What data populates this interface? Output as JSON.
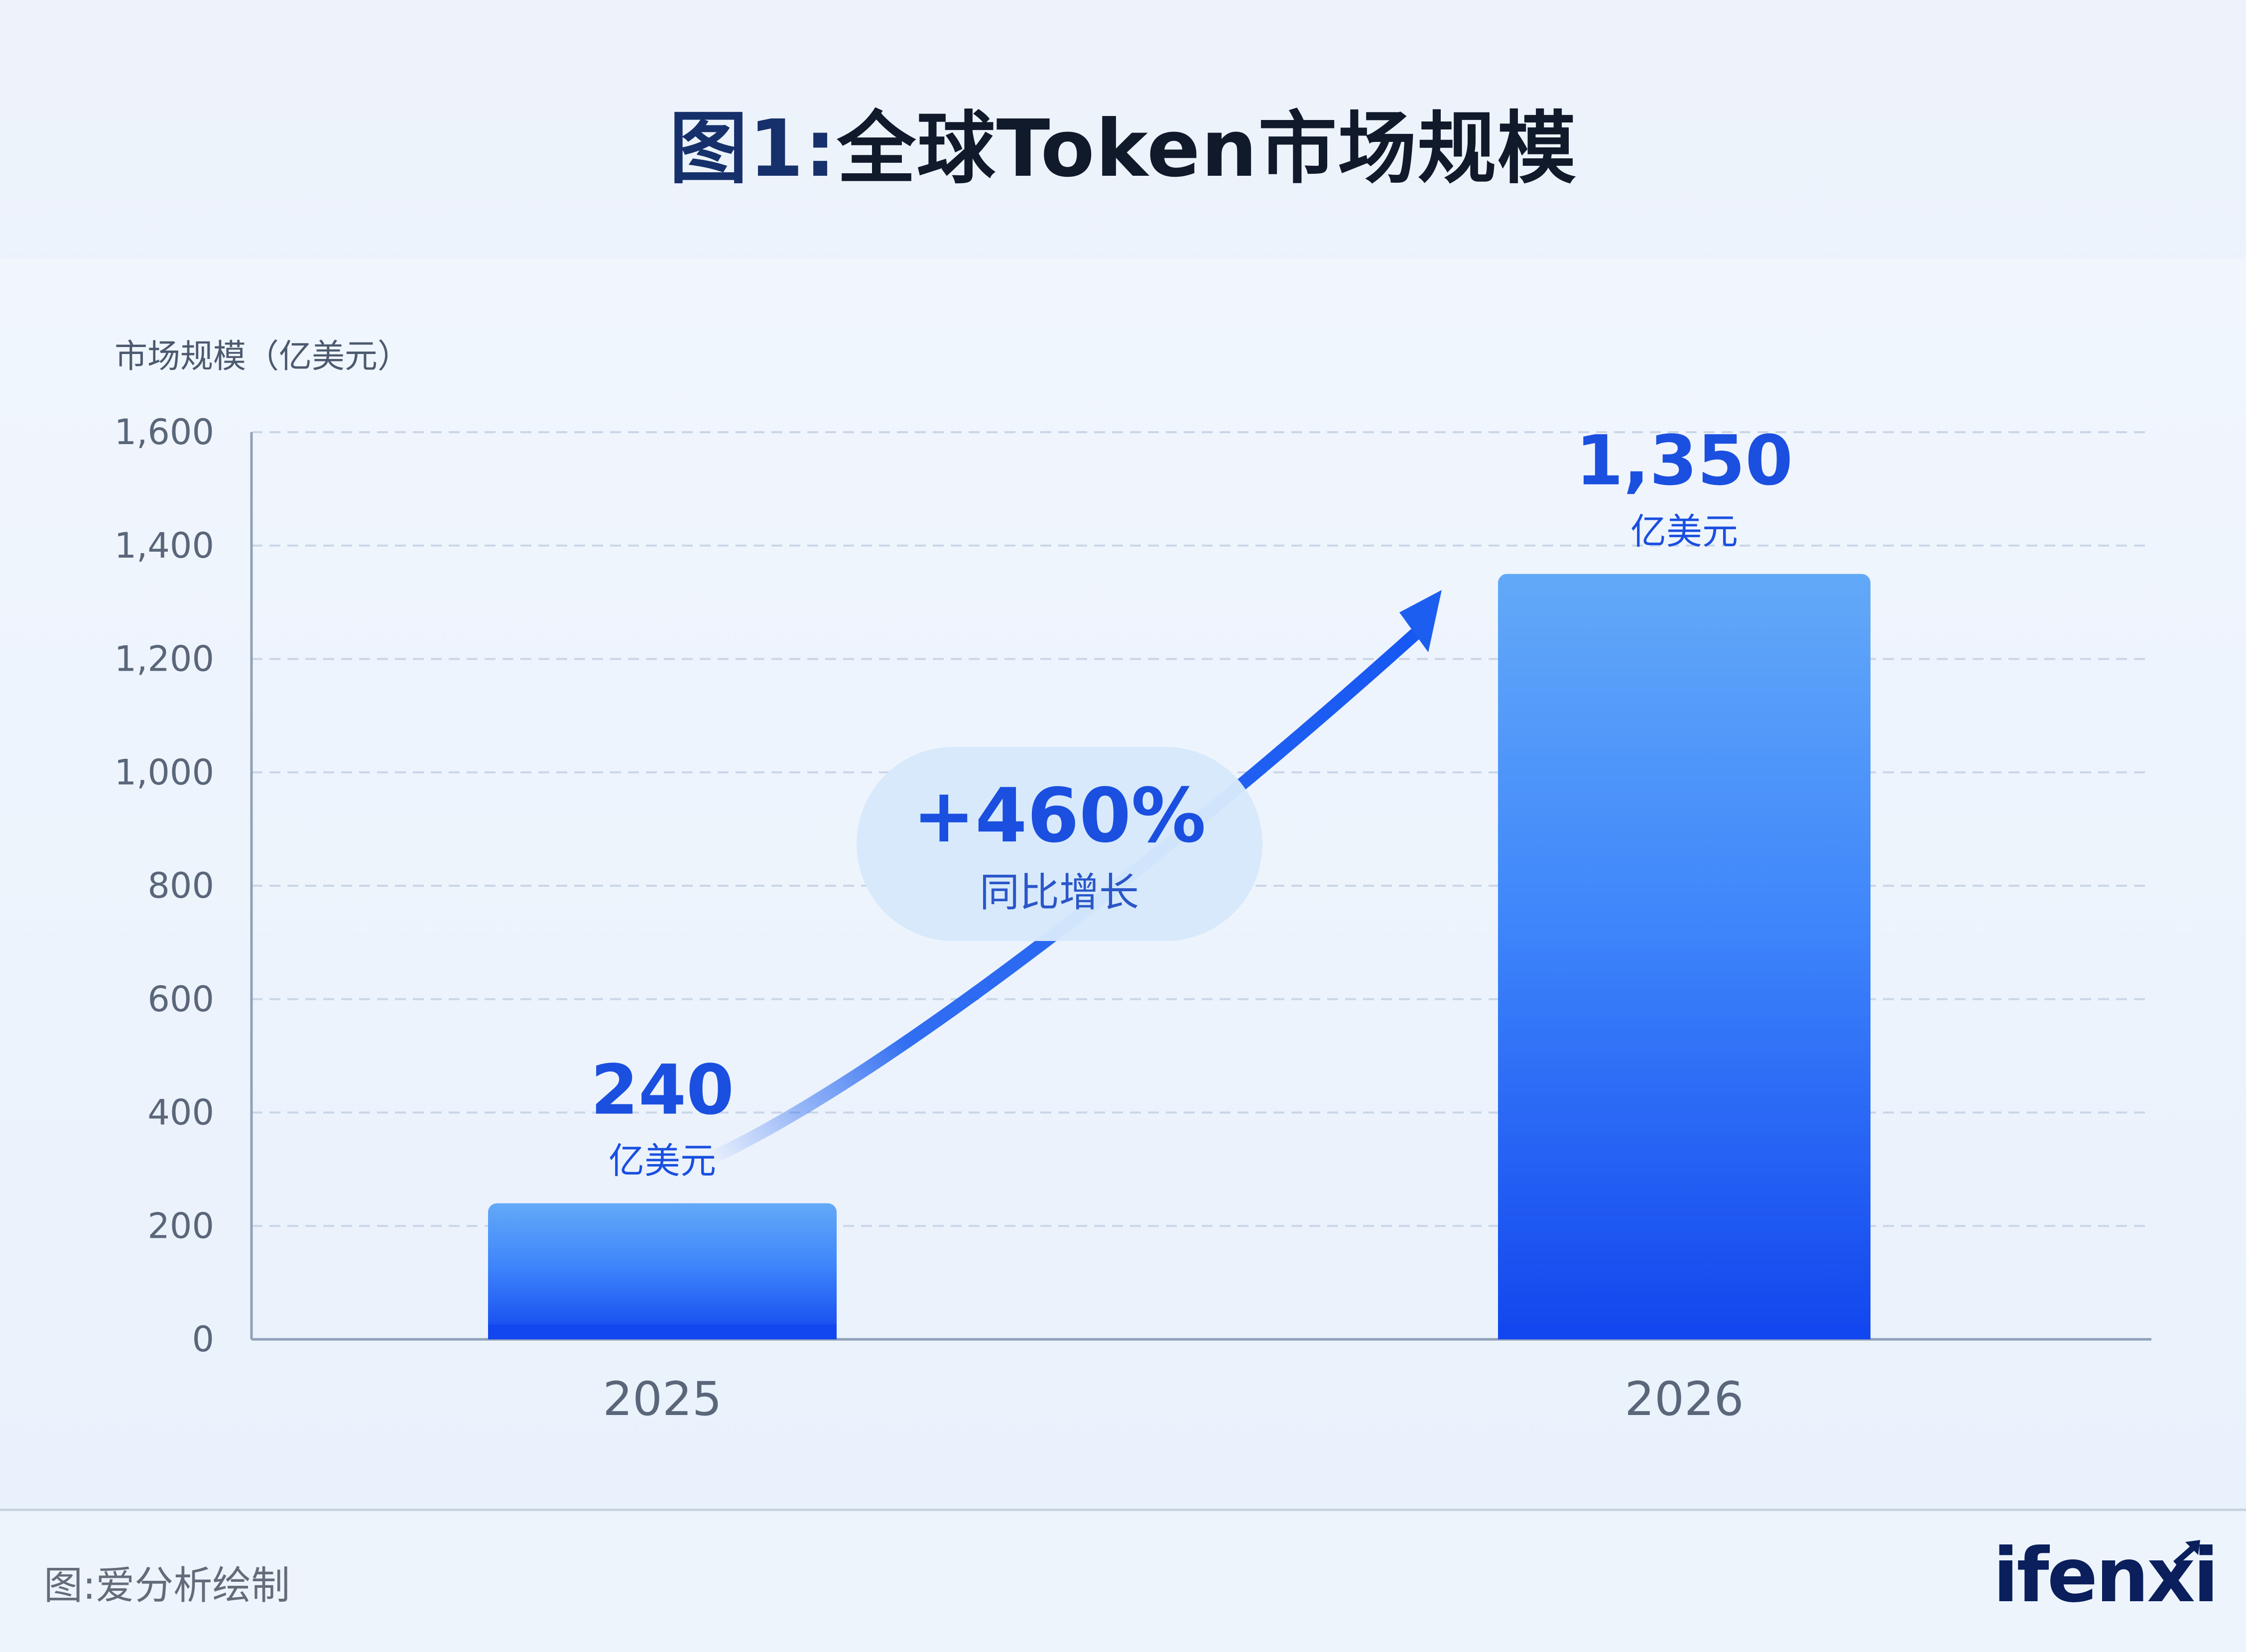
{
  "title": {
    "prefix": "图1:",
    "main": "全球Token市场规模"
  },
  "chart_data": {
    "type": "bar",
    "ylabel": "市场规模（亿美元）",
    "categories": [
      "2025",
      "2026"
    ],
    "values": [
      240,
      1350
    ],
    "ylim": [
      0,
      1600
    ],
    "yticks": [
      0,
      200,
      400,
      600,
      800,
      1000,
      1200,
      1400,
      1600
    ],
    "ytick_labels": [
      "0",
      "200",
      "400",
      "600",
      "800",
      "1,000",
      "1,200",
      "1,400",
      "1,600"
    ],
    "data_labels": [
      {
        "value": "240",
        "unit": "亿美元"
      },
      {
        "value": "1,350",
        "unit": "亿美元"
      }
    ],
    "annotation": {
      "value": "+460%",
      "text": "同比增长"
    },
    "grid": true,
    "colors": {
      "bar_top": "#62a8f7",
      "bar_bottom": "#1349ee",
      "label": "#1a4fe0",
      "arrow": "#1c5ff0",
      "bubble": "#d6e8fb"
    }
  },
  "source": "图:爱分析绘制",
  "logo": "ifenxi"
}
